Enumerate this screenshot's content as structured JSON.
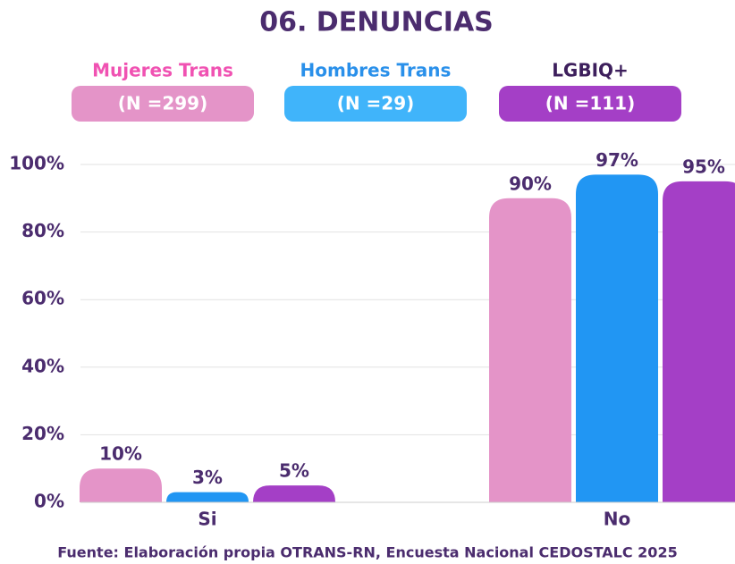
{
  "chart_data": {
    "type": "bar",
    "title": "06. DENUNCIAS",
    "categories": [
      "Si",
      "No"
    ],
    "series": [
      {
        "name": "Mujeres Trans",
        "n_label": "(N =299)",
        "color": "#e494c8",
        "legend_color": "#e494c8",
        "name_color": "#f052b2",
        "values": [
          10,
          90
        ],
        "value_labels": [
          "10%",
          "90%"
        ]
      },
      {
        "name": "Hombres Trans",
        "n_label": "(N =29)",
        "color": "#2196f3",
        "legend_color": "#40b4fa",
        "name_color": "#2a90ea",
        "values": [
          3,
          97
        ],
        "value_labels": [
          "3%",
          "97%"
        ]
      },
      {
        "name": "LGBIQ+",
        "n_label": "(N =111)",
        "color": "#a43fc6",
        "legend_color": "#a43fc6",
        "name_color": "#3d1f5c",
        "values": [
          5,
          95
        ],
        "value_labels": [
          "5%",
          "95%"
        ]
      }
    ],
    "ylim": [
      0,
      100
    ],
    "yticks": [
      {
        "value": 0,
        "label": "0%"
      },
      {
        "value": 20,
        "label": "20%"
      },
      {
        "value": 40,
        "label": "40%"
      },
      {
        "value": 60,
        "label": "60%"
      },
      {
        "value": 80,
        "label": "80%"
      },
      {
        "value": 100,
        "label": "100%"
      }
    ],
    "grid": true,
    "source": "Fuente: Elaboración propia OTRANS-RN, Encuesta Nacional CEDOSTALC 2025"
  }
}
